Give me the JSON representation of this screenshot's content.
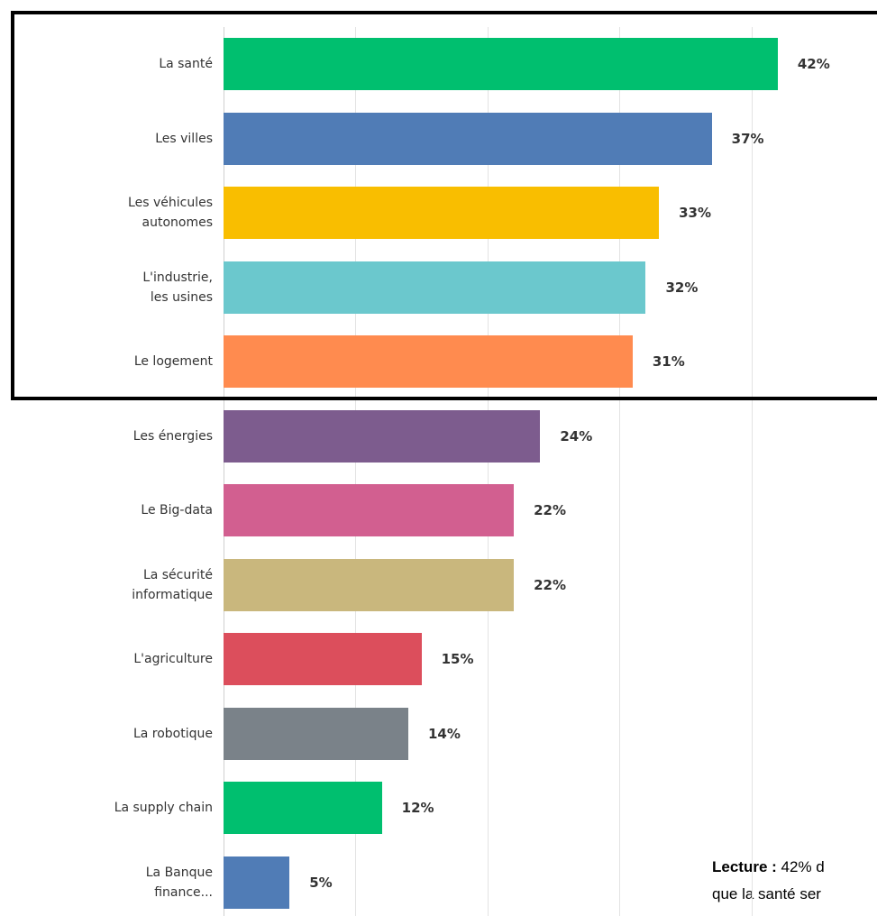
{
  "chart_data": {
    "type": "hbar",
    "categories": [
      "La santé",
      "Les villes",
      "Les véhicules\nautonomes",
      "L'industrie,\nles usines",
      "Le logement",
      "Les énergies",
      "Le Big-data",
      "La sécurité\ninformatique",
      "L'agriculture",
      "La robotique",
      "La supply chain",
      "La Banque\nfinance..."
    ],
    "values": [
      42,
      37,
      33,
      32,
      31,
      24,
      22,
      22,
      15,
      14,
      12,
      5
    ],
    "value_labels": [
      "42%",
      "37%",
      "33%",
      "32%",
      "31%",
      "24%",
      "22%",
      "22%",
      "15%",
      "14%",
      "12%",
      "5%"
    ],
    "colors": [
      "#00bf6f",
      "#507cb6",
      "#f9be00",
      "#6bc8cd",
      "#ff8b4f",
      "#7d5c8e",
      "#d25f90",
      "#c9b77d",
      "#dc4e5c",
      "#7a8289",
      "#00bf6f",
      "#507cb6"
    ],
    "xlim": [
      0,
      45
    ],
    "xticks": [
      0,
      10,
      20,
      30,
      40
    ],
    "grid": true,
    "annotation": {
      "bold": "Lecture :",
      "line1": "42% d",
      "line2": "que la santé ser"
    }
  }
}
